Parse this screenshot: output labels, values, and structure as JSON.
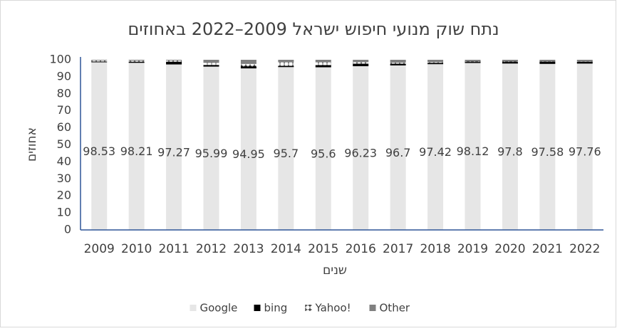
{
  "chart_data": {
    "type": "stacked_bar",
    "title": "נתח שוק מנועי חיפוש ישראל 2009–2022 באחוזים",
    "x_label": "שנים",
    "y_label": "אחוזים",
    "categories": [
      "2009",
      "2010",
      "2011",
      "2012",
      "2013",
      "2014",
      "2015",
      "2016",
      "2017",
      "2018",
      "2019",
      "2020",
      "2021",
      "2022"
    ],
    "series": [
      {
        "name": "Google",
        "color": "#e6e6e6",
        "values": [
          98.53,
          98.21,
          97.27,
          95.99,
          94.95,
          95.7,
          95.6,
          96.23,
          96.7,
          97.42,
          98.12,
          97.8,
          97.58,
          97.76
        ]
      },
      {
        "name": "bing",
        "color": "#000000",
        "values": [
          0.5,
          0.6,
          1.6,
          1.0,
          1.1,
          0.8,
          1.3,
          1.5,
          1.0,
          0.8,
          0.6,
          0.9,
          1.2,
          1.1
        ]
      },
      {
        "name": "Yahoo!",
        "color": "#ffffff",
        "values": [
          0.6,
          0.7,
          0.7,
          1.2,
          1.5,
          2.0,
          1.6,
          0.9,
          0.6,
          0.4,
          0.3,
          0.3,
          0.2,
          0.2
        ]
      },
      {
        "name": "Other",
        "color": "#808080",
        "values": [
          0.37,
          0.49,
          0.43,
          1.81,
          2.45,
          1.5,
          1.5,
          1.37,
          1.7,
          1.38,
          0.98,
          1.0,
          1.02,
          0.94
        ]
      }
    ],
    "data_labels_series": "Google",
    "ylim": [
      0,
      100
    ],
    "yticks": [
      0,
      10,
      20,
      30,
      40,
      50,
      60,
      70,
      80,
      90,
      100
    ],
    "grid": false,
    "legend": "bottom"
  }
}
